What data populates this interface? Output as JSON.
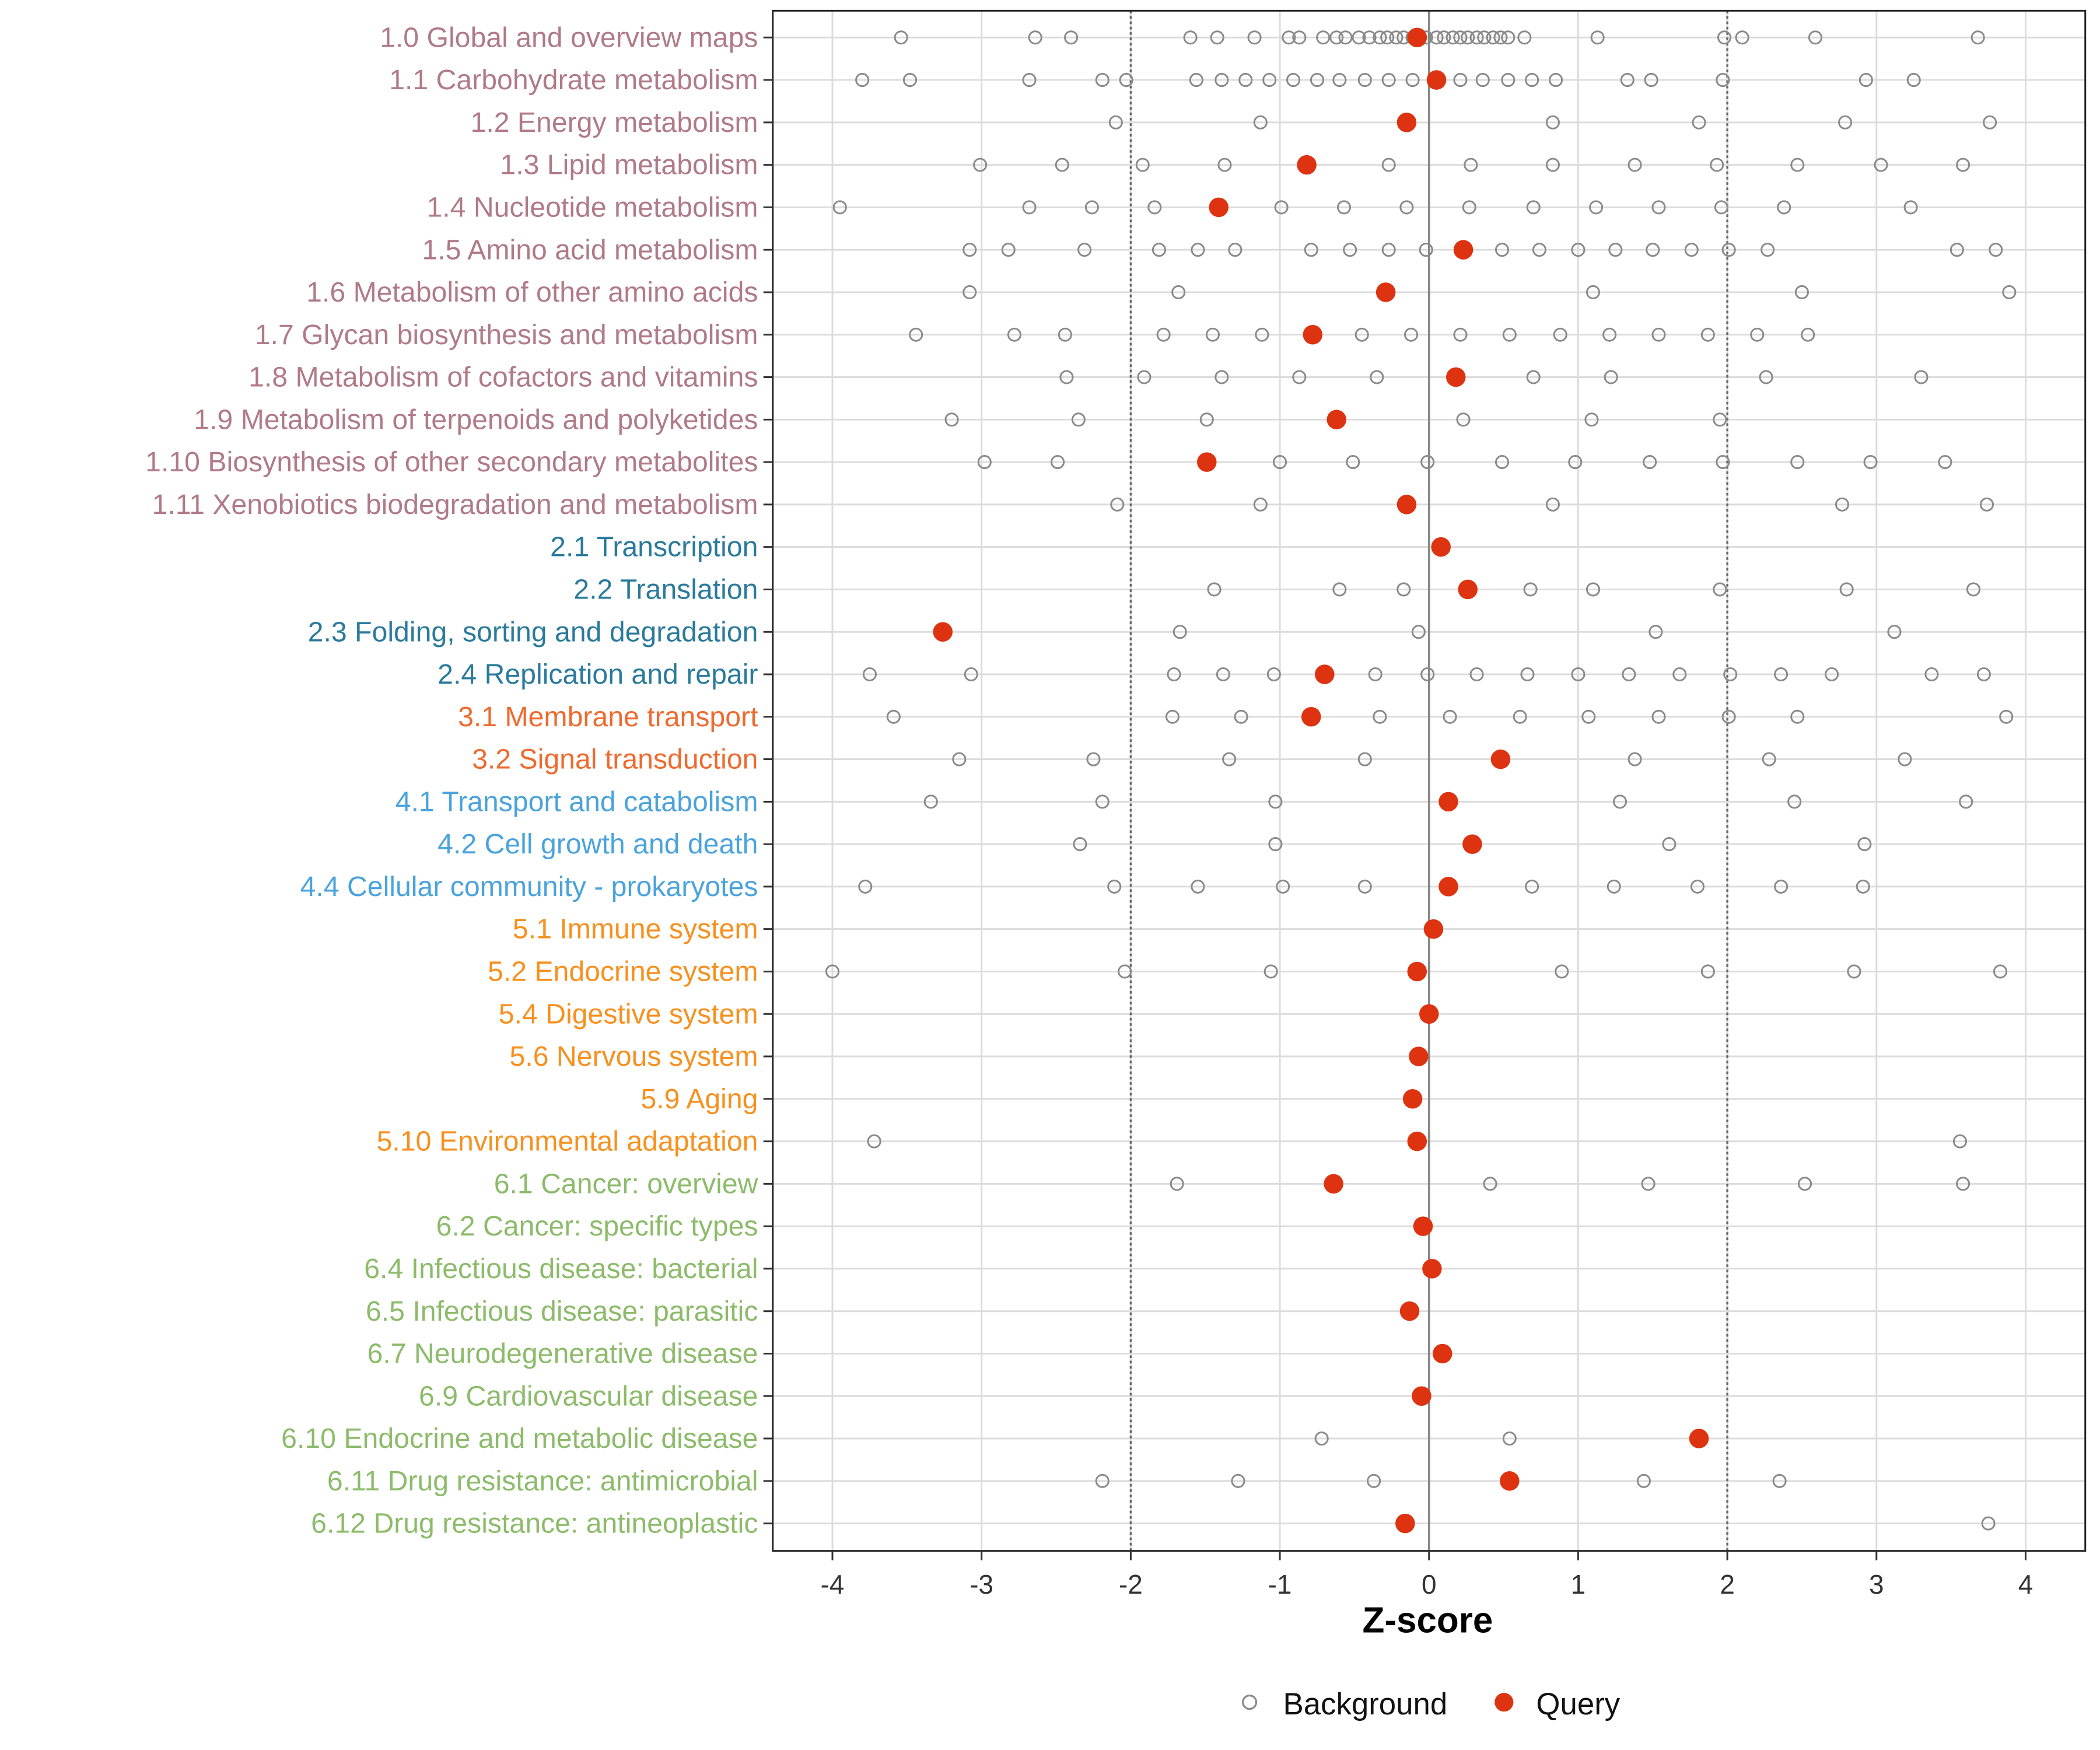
{
  "chart_data": {
    "type": "scatter",
    "title": "",
    "xlabel": "Z-score",
    "ylabel": "",
    "xlim": [
      -4.4,
      4.4
    ],
    "xticks": [
      -4,
      -3,
      -2,
      -1,
      0,
      1,
      2,
      3,
      4
    ],
    "reference_lines": {
      "solid": [
        0
      ],
      "dotted": [
        -2,
        2
      ]
    },
    "grid": true,
    "legend": {
      "placement": "bottom",
      "entries": [
        "Background",
        "Query"
      ]
    },
    "colors": {
      "background_point": "#8a8a8a",
      "query_point": "#dd3311",
      "group_1": "#b07a88",
      "group_2": "#2a7a9c",
      "group_3": "#ee6a2e",
      "group_4": "#4aa3dc",
      "group_5": "#f7901e",
      "group_6": "#8cbb6a"
    },
    "categories": [
      {
        "label": "1.0 Global and overview maps",
        "group": 1,
        "query": -0.08,
        "background": [
          -3.54,
          -2.64,
          -2.4,
          -1.6,
          -1.42,
          -1.17,
          -0.94,
          -0.87,
          -0.71,
          -0.62,
          -0.56,
          -0.47,
          -0.4,
          -0.33,
          -0.28,
          -0.22,
          -0.17,
          -0.11,
          -0.06,
          -0.02,
          0.05,
          0.1,
          0.16,
          0.21,
          0.26,
          0.32,
          0.37,
          0.43,
          0.48,
          0.53,
          0.64,
          1.13,
          1.98,
          2.1,
          2.59,
          3.68
        ]
      },
      {
        "label": "1.1 Carbohydrate metabolism",
        "group": 1,
        "query": 0.05,
        "background": [
          -3.8,
          -3.48,
          -2.68,
          -2.19,
          -2.03,
          -1.56,
          -1.39,
          -1.23,
          -1.07,
          -0.91,
          -0.75,
          -0.6,
          -0.43,
          -0.27,
          -0.11,
          0.21,
          0.36,
          0.53,
          0.69,
          0.85,
          1.33,
          1.49,
          1.97,
          2.93,
          3.25
        ]
      },
      {
        "label": "1.2 Energy metabolism",
        "group": 1,
        "query": -0.15,
        "background": [
          -2.1,
          -1.13,
          0.83,
          1.81,
          2.79,
          3.76
        ]
      },
      {
        "label": "1.3 Lipid metabolism",
        "group": 1,
        "query": -0.82,
        "background": [
          -3.01,
          -2.46,
          -1.92,
          -1.37,
          -0.27,
          0.28,
          0.83,
          1.38,
          1.93,
          2.47,
          3.03,
          3.58
        ]
      },
      {
        "label": "1.4 Nucleotide metabolism",
        "group": 1,
        "query": -1.41,
        "background": [
          -3.95,
          -2.68,
          -2.26,
          -1.84,
          -0.99,
          -0.57,
          -0.15,
          0.27,
          0.7,
          1.12,
          1.54,
          1.96,
          2.38,
          3.23
        ]
      },
      {
        "label": "1.5 Amino acid metabolism",
        "group": 1,
        "query": 0.23,
        "background": [
          -3.08,
          -2.82,
          -2.31,
          -1.81,
          -1.55,
          -1.3,
          -0.79,
          -0.53,
          -0.27,
          -0.02,
          0.49,
          0.74,
          1.0,
          1.25,
          1.5,
          1.76,
          2.01,
          2.27,
          3.54,
          3.8
        ]
      },
      {
        "label": "1.6 Metabolism of other amino acids",
        "group": 1,
        "query": -0.29,
        "background": [
          -3.08,
          -1.68,
          1.1,
          2.5,
          3.89
        ]
      },
      {
        "label": "1.7 Glycan biosynthesis and metabolism",
        "group": 1,
        "query": -0.78,
        "background": [
          -3.44,
          -2.78,
          -2.44,
          -1.78,
          -1.45,
          -1.12,
          -0.78,
          -0.45,
          -0.12,
          0.21,
          0.54,
          0.88,
          1.21,
          1.54,
          1.87,
          2.2,
          2.54
        ]
      },
      {
        "label": "1.8 Metabolism of cofactors and vitamins",
        "group": 1,
        "query": 0.18,
        "background": [
          -2.43,
          -1.91,
          -1.39,
          -0.87,
          -0.35,
          0.7,
          1.22,
          2.26,
          3.3
        ]
      },
      {
        "label": "1.9 Metabolism of terpenoids and polyketides",
        "group": 1,
        "query": -0.62,
        "background": [
          -3.2,
          -2.35,
          -1.49,
          0.23,
          1.09,
          1.95
        ]
      },
      {
        "label": "1.10 Biosynthesis of other secondary metabolites",
        "group": 1,
        "query": -1.49,
        "background": [
          -2.98,
          -2.49,
          -1.0,
          -0.51,
          -0.01,
          0.49,
          0.98,
          1.48,
          1.97,
          2.47,
          2.96,
          3.46
        ]
      },
      {
        "label": "1.11 Xenobiotics biodegradation and metabolism",
        "group": 1,
        "query": -0.15,
        "background": [
          -2.09,
          -1.13,
          0.83,
          2.77,
          3.74
        ]
      },
      {
        "label": "2.1 Transcription",
        "group": 2,
        "query": 0.08,
        "background": []
      },
      {
        "label": "2.2 Translation",
        "group": 2,
        "query": 0.26,
        "background": [
          -1.44,
          -0.6,
          -0.17,
          0.68,
          1.1,
          1.95,
          2.8,
          3.65
        ]
      },
      {
        "label": "2.3 Folding, sorting and degradation",
        "group": 2,
        "query": -3.26,
        "background": [
          -1.67,
          -0.07,
          1.52,
          3.12
        ]
      },
      {
        "label": "2.4 Replication and repair",
        "group": 2,
        "query": -0.7,
        "background": [
          -3.75,
          -3.07,
          -1.71,
          -1.38,
          -1.04,
          -0.36,
          -0.01,
          0.32,
          0.66,
          1.0,
          1.34,
          1.68,
          2.02,
          2.36,
          2.7,
          3.37,
          3.72
        ]
      },
      {
        "label": "3.1 Membrane transport",
        "group": 3,
        "query": -0.79,
        "background": [
          -3.59,
          -1.72,
          -1.26,
          -0.33,
          0.14,
          0.61,
          1.07,
          1.54,
          2.01,
          2.47,
          3.87
        ]
      },
      {
        "label": "3.2 Signal transduction",
        "group": 3,
        "query": 0.48,
        "background": [
          -3.15,
          -2.25,
          -1.34,
          -0.43,
          1.38,
          2.28,
          3.19
        ]
      },
      {
        "label": "4.1 Transport and catabolism",
        "group": 4,
        "query": 0.13,
        "background": [
          -3.34,
          -2.19,
          -1.03,
          1.28,
          2.45,
          3.6
        ]
      },
      {
        "label": "4.2 Cell growth and death",
        "group": 4,
        "query": 0.29,
        "background": [
          -2.34,
          -1.03,
          1.61,
          2.92
        ]
      },
      {
        "label": "4.4 Cellular community - prokaryotes",
        "group": 4,
        "query": 0.13,
        "background": [
          -3.78,
          -2.11,
          -1.55,
          -0.98,
          -0.43,
          0.69,
          1.24,
          1.8,
          2.36,
          2.91
        ]
      },
      {
        "label": "5.1 Immune system",
        "group": 5,
        "query": 0.03,
        "background": []
      },
      {
        "label": "5.2 Endocrine system",
        "group": 5,
        "query": -0.08,
        "background": [
          -4.0,
          -2.04,
          -1.06,
          0.89,
          1.87,
          2.85,
          3.83
        ]
      },
      {
        "label": "5.4 Digestive system",
        "group": 5,
        "query": 0.0,
        "background": []
      },
      {
        "label": "5.6 Nervous system",
        "group": 5,
        "query": -0.07,
        "background": []
      },
      {
        "label": "5.9 Aging",
        "group": 5,
        "query": -0.11,
        "background": []
      },
      {
        "label": "5.10 Environmental adaptation",
        "group": 5,
        "query": -0.08,
        "background": [
          -3.72,
          3.56
        ]
      },
      {
        "label": "6.1 Cancer: overview",
        "group": 6,
        "query": -0.64,
        "background": [
          -1.69,
          0.41,
          1.47,
          2.52,
          3.58
        ]
      },
      {
        "label": "6.2 Cancer: specific types",
        "group": 6,
        "query": -0.04,
        "background": []
      },
      {
        "label": "6.4 Infectious disease: bacterial",
        "group": 6,
        "query": 0.02,
        "background": []
      },
      {
        "label": "6.5 Infectious disease: parasitic",
        "group": 6,
        "query": -0.13,
        "background": []
      },
      {
        "label": "6.7 Neurodegenerative disease",
        "group": 6,
        "query": 0.09,
        "background": []
      },
      {
        "label": "6.9 Cardiovascular disease",
        "group": 6,
        "query": -0.05,
        "background": []
      },
      {
        "label": "6.10 Endocrine and metabolic disease",
        "group": 6,
        "query": 1.81,
        "background": [
          -0.72,
          0.54
        ]
      },
      {
        "label": "6.11 Drug resistance: antimicrobial",
        "group": 6,
        "query": 0.54,
        "background": [
          -2.19,
          -1.28,
          -0.37,
          1.44,
          2.35
        ]
      },
      {
        "label": "6.12 Drug resistance: antineoplastic",
        "group": 6,
        "query": -0.16,
        "background": [
          3.75
        ]
      }
    ]
  }
}
